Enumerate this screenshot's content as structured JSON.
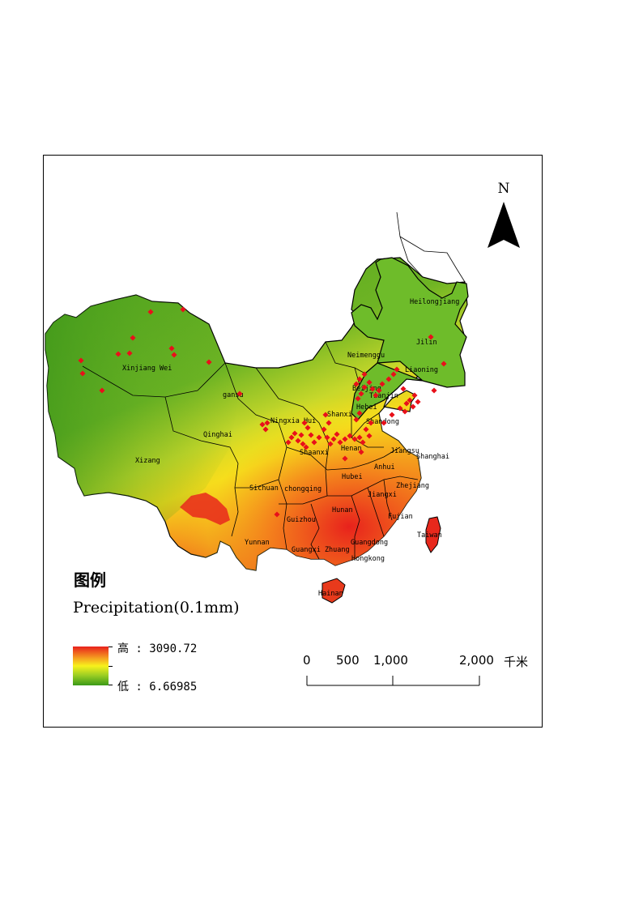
{
  "legend": {
    "title": "图例",
    "subtitle": "Precipitation(0.1mm)",
    "high_label": "高 : 3090.72",
    "low_label": "低 : 6.66985",
    "ramp_colors": [
      "#e8201c",
      "#f5a020",
      "#f7f21c",
      "#98cc24",
      "#3a9a18"
    ]
  },
  "north_arrow": {
    "label": "N"
  },
  "scale_bar": {
    "ticks": [
      "0",
      "500",
      "1,000",
      "2,000"
    ],
    "unit": "千米"
  },
  "provinces": [
    {
      "name": "Heilongjiang"
    },
    {
      "name": "Jilin"
    },
    {
      "name": "Liaoning"
    },
    {
      "name": "Neimenggu"
    },
    {
      "name": "Xinjiang Wei"
    },
    {
      "name": "gansu"
    },
    {
      "name": "Qinghai"
    },
    {
      "name": "Xizang"
    },
    {
      "name": "Ningxia Hui"
    },
    {
      "name": "Shaanxi"
    },
    {
      "name": "Shanxi"
    },
    {
      "name": "Hebei"
    },
    {
      "name": "Beijing"
    },
    {
      "name": "Tianjin"
    },
    {
      "name": "Shandong"
    },
    {
      "name": "Henan"
    },
    {
      "name": "Jiangsu"
    },
    {
      "name": "Shanghai"
    },
    {
      "name": "Anhui"
    },
    {
      "name": "Hubei"
    },
    {
      "name": "Zhejiang"
    },
    {
      "name": "Sichuan"
    },
    {
      "name": "chongqing"
    },
    {
      "name": "Hunan"
    },
    {
      "name": "Jiangxi"
    },
    {
      "name": "Fujian"
    },
    {
      "name": "Guizhou"
    },
    {
      "name": "Yunnan"
    },
    {
      "name": "Guangxi Zhuang"
    },
    {
      "name": "Guangdong"
    },
    {
      "name": "Hongkong"
    },
    {
      "name": "Taiwan"
    },
    {
      "name": "Hainan"
    }
  ],
  "colors": {
    "sample_point": "#e8101a",
    "boundary": "#000000"
  }
}
